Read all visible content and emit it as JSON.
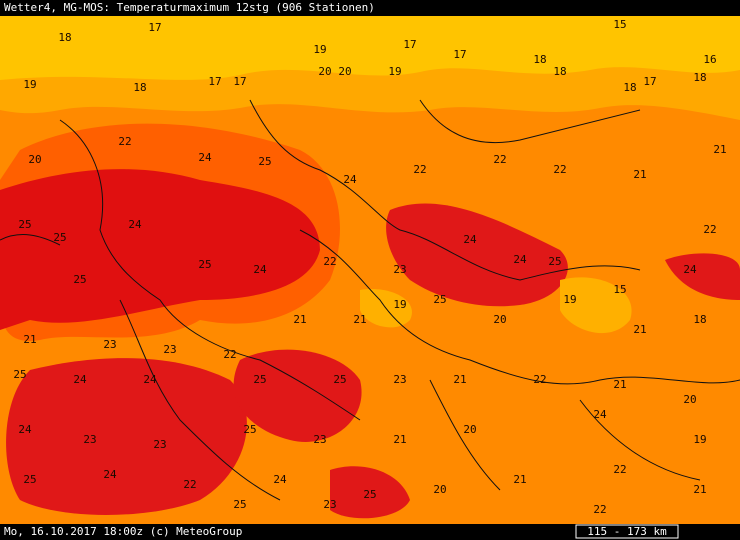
{
  "header": {
    "title": "Wetter4, MG-MOS: Temperaturmaximum 12stg (906 Stationen)"
  },
  "footer": {
    "timestamp": "Mo, 16.10.2017 18:00z (c) MeteoGroup",
    "scale": "115 - 173 km"
  },
  "stations": [
    18,
    17,
    19,
    18,
    17,
    17,
    20,
    20,
    19,
    19,
    17,
    17,
    18,
    18,
    18,
    17,
    18,
    16,
    15,
    20,
    22,
    24,
    25,
    24,
    22,
    22,
    22,
    21,
    21,
    25,
    25,
    24,
    25,
    24,
    22,
    23,
    24,
    24,
    25,
    15,
    24,
    22,
    25,
    21,
    23,
    23,
    22,
    21,
    21,
    19,
    25,
    20,
    19,
    21,
    18,
    25,
    24,
    24,
    25,
    25,
    23,
    21,
    22,
    21,
    20,
    24,
    23,
    23,
    25,
    23,
    21,
    20,
    24,
    19,
    25,
    24,
    22,
    24,
    25,
    20,
    21,
    22,
    21,
    25,
    23,
    22
  ]
}
